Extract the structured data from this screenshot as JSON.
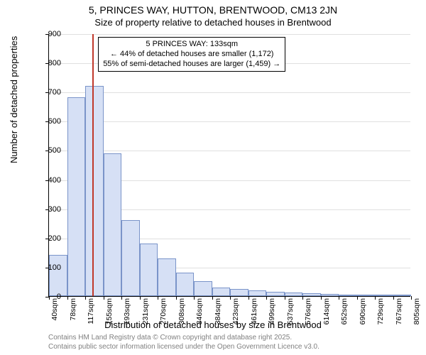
{
  "title_main": "5, PRINCES WAY, HUTTON, BRENTWOOD, CM13 2JN",
  "title_sub": "Size of property relative to detached houses in Brentwood",
  "ylabel": "Number of detached properties",
  "xlabel": "Distribution of detached houses by size in Brentwood",
  "credit_line1": "Contains HM Land Registry data © Crown copyright and database right 2025.",
  "credit_line2": "Contains public sector information licensed under the Open Government Licence v3.0.",
  "chart": {
    "type": "histogram",
    "background_color": "#ffffff",
    "grid_color": "#e0e0e0",
    "axis_color": "#000000",
    "bar_fill": "#d6e0f5",
    "bar_border": "#7a94c9",
    "marker_color": "#c0392b",
    "ylim": [
      0,
      900
    ],
    "ytick_step": 100,
    "yticks": [
      0,
      100,
      200,
      300,
      400,
      500,
      600,
      700,
      800,
      900
    ],
    "x_tick_labels": [
      "40sqm",
      "78sqm",
      "117sqm",
      "155sqm",
      "193sqm",
      "231sqm",
      "270sqm",
      "308sqm",
      "346sqm",
      "384sqm",
      "423sqm",
      "461sqm",
      "499sqm",
      "537sqm",
      "576sqm",
      "614sqm",
      "652sqm",
      "690sqm",
      "729sqm",
      "767sqm",
      "805sqm"
    ],
    "bar_values": [
      140,
      680,
      720,
      490,
      260,
      180,
      130,
      80,
      50,
      30,
      25,
      20,
      15,
      12,
      10,
      8,
      3,
      2,
      1,
      1
    ],
    "bar_count": 20,
    "marker_bin_index": 2,
    "marker_offset_in_bin": 0.4,
    "annotation": {
      "line1": "5 PRINCES WAY: 133sqm",
      "line2": "← 44% of detached houses are smaller (1,172)",
      "line3": "55% of semi-detached houses are larger (1,459) →"
    },
    "title_fontsize": 14,
    "subtitle_fontsize": 13,
    "label_fontsize": 13,
    "tick_fontsize": 11,
    "annotation_fontsize": 11
  }
}
